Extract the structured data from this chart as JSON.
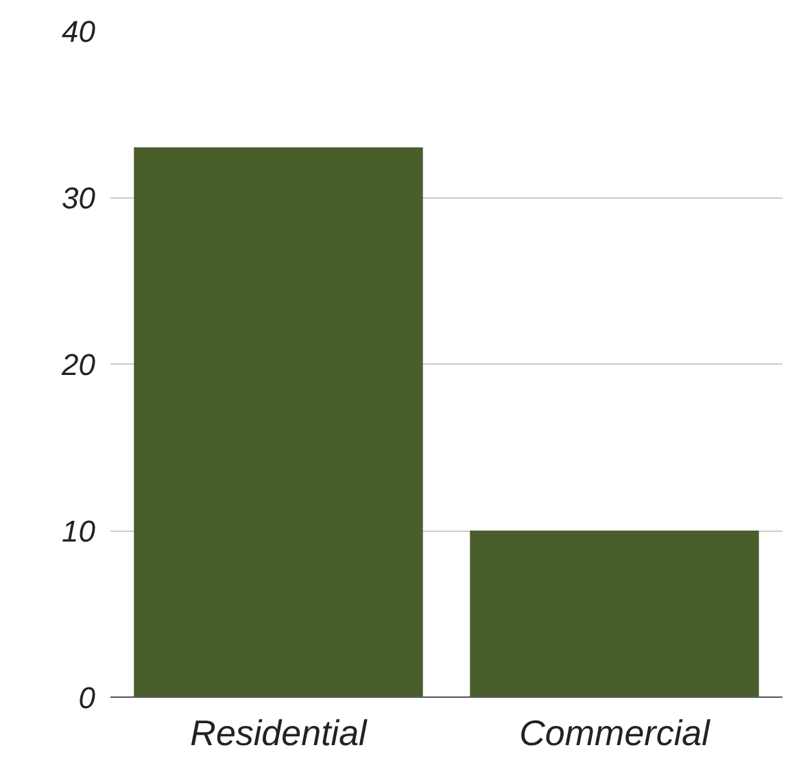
{
  "chart_data": {
    "type": "bar",
    "categories": [
      "Residential",
      "Commercial"
    ],
    "values": [
      33,
      10
    ],
    "color": "#4a5e2b",
    "ylim": [
      0,
      40
    ],
    "yticks": [
      0,
      10,
      20,
      30,
      40
    ],
    "grid": "y"
  }
}
